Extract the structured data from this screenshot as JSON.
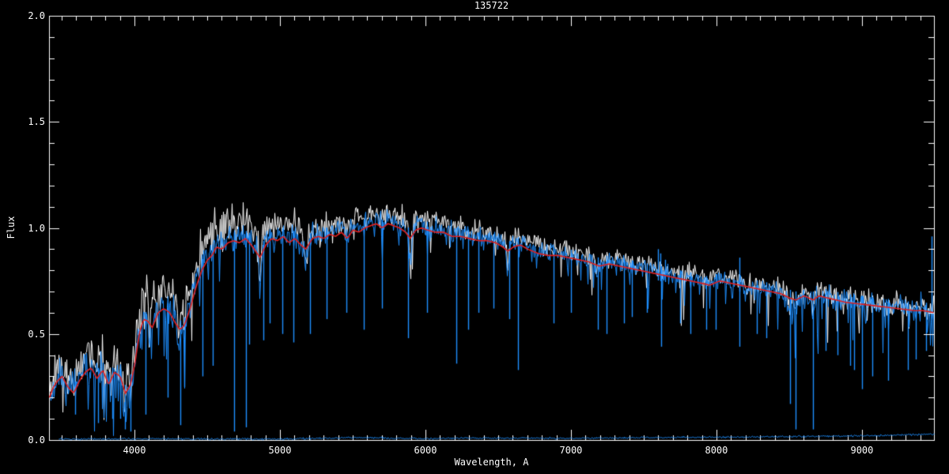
{
  "title": "135722",
  "axes": {
    "xlabel": "Wavelength, A",
    "ylabel": "Flux",
    "x_tick_labels": [
      "4000",
      "5000",
      "6000",
      "7000",
      "8000",
      "9000"
    ],
    "y_tick_labels": [
      "0.0",
      "0.5",
      "1.0",
      "1.5",
      "2.0"
    ]
  },
  "colors": {
    "background": "#000000",
    "axis": "#ffffff",
    "observed": "#ffffff",
    "comparison": "#1e8fff",
    "model": "#e02020"
  },
  "chart_data": {
    "type": "line",
    "title": "135722",
    "xlabel": "Wavelength, A",
    "ylabel": "Flux",
    "xlim": [
      3413,
      9495
    ],
    "ylim": [
      0.0,
      2.0
    ],
    "x_major_ticks": [
      4000,
      5000,
      6000,
      7000,
      8000,
      9000
    ],
    "x_minor_step": 100,
    "y_major_ticks": [
      0.0,
      0.5,
      1.0,
      1.5,
      2.0
    ],
    "y_minor_step": 0.1,
    "grid": false,
    "legend": "none",
    "series": [
      {
        "name": "observed spectrum",
        "color": "#ffffff",
        "style": "noisy-line",
        "offset_points": [
          [
            3413,
            0.05
          ],
          [
            3700,
            0.06
          ],
          [
            4000,
            0.08
          ],
          [
            4300,
            0.11
          ],
          [
            4600,
            0.11
          ],
          [
            4800,
            0.07
          ],
          [
            5100,
            0.06
          ],
          [
            5500,
            0.05
          ],
          [
            6000,
            0.05
          ],
          [
            6500,
            0.04
          ],
          [
            7000,
            0.04
          ],
          [
            7500,
            0.03
          ],
          [
            8000,
            0.03
          ],
          [
            8600,
            0.02
          ],
          [
            9495,
            0.02
          ]
        ],
        "noise_amp_points": [
          [
            3413,
            0.09
          ],
          [
            3700,
            0.09
          ],
          [
            4000,
            0.1
          ],
          [
            4300,
            0.1
          ],
          [
            4700,
            0.09
          ],
          [
            5000,
            0.07
          ],
          [
            5500,
            0.06
          ],
          [
            6000,
            0.055
          ],
          [
            6500,
            0.05
          ],
          [
            7000,
            0.045
          ],
          [
            7500,
            0.05
          ],
          [
            8000,
            0.045
          ],
          [
            8600,
            0.05
          ],
          [
            9000,
            0.055
          ],
          [
            9495,
            0.065
          ]
        ]
      },
      {
        "name": "comparison spectrum",
        "color": "#1e8fff",
        "style": "noisy-line",
        "offset_points": [
          [
            3413,
            0.01
          ],
          [
            4300,
            0.02
          ],
          [
            5000,
            0.02
          ],
          [
            6000,
            0.02
          ],
          [
            7000,
            0.015
          ],
          [
            8000,
            0.01
          ],
          [
            9495,
            0.01
          ]
        ],
        "noise_amp_points": [
          [
            3413,
            0.07
          ],
          [
            4000,
            0.08
          ],
          [
            4300,
            0.08
          ],
          [
            4700,
            0.07
          ],
          [
            5000,
            0.055
          ],
          [
            5500,
            0.05
          ],
          [
            6000,
            0.045
          ],
          [
            6500,
            0.04
          ],
          [
            7000,
            0.04
          ],
          [
            7500,
            0.045
          ],
          [
            8000,
            0.04
          ],
          [
            8600,
            0.045
          ],
          [
            9000,
            0.05
          ],
          [
            9495,
            0.06
          ]
        ]
      },
      {
        "name": "model fit",
        "color": "#e02020",
        "style": "smooth-line",
        "points": [
          [
            3413,
            0.2
          ],
          [
            3440,
            0.25
          ],
          [
            3470,
            0.28
          ],
          [
            3500,
            0.3
          ],
          [
            3540,
            0.25
          ],
          [
            3580,
            0.22
          ],
          [
            3620,
            0.28
          ],
          [
            3660,
            0.32
          ],
          [
            3700,
            0.34
          ],
          [
            3740,
            0.29
          ],
          [
            3780,
            0.33
          ],
          [
            3820,
            0.26
          ],
          [
            3860,
            0.32
          ],
          [
            3900,
            0.3
          ],
          [
            3935,
            0.22
          ],
          [
            3970,
            0.26
          ],
          [
            4000,
            0.36
          ],
          [
            4030,
            0.5
          ],
          [
            4060,
            0.57
          ],
          [
            4090,
            0.56
          ],
          [
            4120,
            0.53
          ],
          [
            4160,
            0.6
          ],
          [
            4200,
            0.62
          ],
          [
            4240,
            0.6
          ],
          [
            4280,
            0.55
          ],
          [
            4310,
            0.52
          ],
          [
            4340,
            0.54
          ],
          [
            4380,
            0.62
          ],
          [
            4420,
            0.72
          ],
          [
            4460,
            0.8
          ],
          [
            4500,
            0.85
          ],
          [
            4530,
            0.87
          ],
          [
            4560,
            0.91
          ],
          [
            4600,
            0.9
          ],
          [
            4640,
            0.93
          ],
          [
            4680,
            0.94
          ],
          [
            4720,
            0.93
          ],
          [
            4760,
            0.95
          ],
          [
            4800,
            0.92
          ],
          [
            4861,
            0.86
          ],
          [
            4900,
            0.92
          ],
          [
            4940,
            0.95
          ],
          [
            4980,
            0.94
          ],
          [
            5020,
            0.96
          ],
          [
            5060,
            0.93
          ],
          [
            5100,
            0.95
          ],
          [
            5140,
            0.92
          ],
          [
            5175,
            0.9
          ],
          [
            5220,
            0.95
          ],
          [
            5260,
            0.96
          ],
          [
            5300,
            0.95
          ],
          [
            5340,
            0.97
          ],
          [
            5380,
            0.96
          ],
          [
            5420,
            0.98
          ],
          [
            5460,
            0.95
          ],
          [
            5500,
            0.99
          ],
          [
            5540,
            0.98
          ],
          [
            5580,
            1.0
          ],
          [
            5620,
            1.01
          ],
          [
            5660,
            1.02
          ],
          [
            5700,
            1.0
          ],
          [
            5740,
            1.02
          ],
          [
            5780,
            1.01
          ],
          [
            5820,
            1.0
          ],
          [
            5860,
            0.98
          ],
          [
            5893,
            0.95
          ],
          [
            5930,
            0.99
          ],
          [
            5970,
            1.0
          ],
          [
            6010,
            0.99
          ],
          [
            6060,
            0.98
          ],
          [
            6120,
            0.98
          ],
          [
            6180,
            0.96
          ],
          [
            6240,
            0.96
          ],
          [
            6300,
            0.95
          ],
          [
            6360,
            0.94
          ],
          [
            6420,
            0.94
          ],
          [
            6480,
            0.93
          ],
          [
            6530,
            0.91
          ],
          [
            6563,
            0.89
          ],
          [
            6600,
            0.91
          ],
          [
            6650,
            0.92
          ],
          [
            6700,
            0.9
          ],
          [
            6770,
            0.88
          ],
          [
            6840,
            0.87
          ],
          [
            6910,
            0.87
          ],
          [
            6980,
            0.86
          ],
          [
            7050,
            0.85
          ],
          [
            7120,
            0.84
          ],
          [
            7190,
            0.82
          ],
          [
            7260,
            0.83
          ],
          [
            7330,
            0.82
          ],
          [
            7400,
            0.81
          ],
          [
            7470,
            0.8
          ],
          [
            7540,
            0.79
          ],
          [
            7610,
            0.78
          ],
          [
            7680,
            0.77
          ],
          [
            7750,
            0.76
          ],
          [
            7820,
            0.75
          ],
          [
            7890,
            0.74
          ],
          [
            7950,
            0.73
          ],
          [
            8020,
            0.75
          ],
          [
            8090,
            0.74
          ],
          [
            8160,
            0.73
          ],
          [
            8230,
            0.72
          ],
          [
            8300,
            0.71
          ],
          [
            8370,
            0.7
          ],
          [
            8440,
            0.69
          ],
          [
            8498,
            0.67
          ],
          [
            8542,
            0.66
          ],
          [
            8600,
            0.68
          ],
          [
            8662,
            0.66
          ],
          [
            8700,
            0.68
          ],
          [
            8760,
            0.67
          ],
          [
            8820,
            0.66
          ],
          [
            8880,
            0.65
          ],
          [
            8940,
            0.645
          ],
          [
            9000,
            0.64
          ],
          [
            9060,
            0.635
          ],
          [
            9120,
            0.63
          ],
          [
            9180,
            0.625
          ],
          [
            9240,
            0.62
          ],
          [
            9300,
            0.615
          ],
          [
            9360,
            0.61
          ],
          [
            9420,
            0.61
          ],
          [
            9495,
            0.6
          ]
        ]
      },
      {
        "name": "error spectrum",
        "color": "#1e8fff",
        "style": "flat-line",
        "points": [
          [
            3450,
            0.005
          ],
          [
            5000,
            0.005
          ],
          [
            5577,
            0.012
          ],
          [
            6000,
            0.006
          ],
          [
            6300,
            0.01
          ],
          [
            7000,
            0.008
          ],
          [
            7600,
            0.012
          ],
          [
            8300,
            0.015
          ],
          [
            9000,
            0.02
          ],
          [
            9495,
            0.028
          ]
        ]
      }
    ],
    "absorption_lines": [
      [
        3797,
        0.15,
        6
      ],
      [
        3835,
        0.18,
        6
      ],
      [
        3889,
        0.18,
        6
      ],
      [
        3933,
        0.3,
        8
      ],
      [
        3968,
        0.25,
        8
      ],
      [
        4101,
        0.18,
        7
      ],
      [
        4305,
        0.18,
        8
      ],
      [
        4340,
        0.15,
        7
      ],
      [
        4861,
        0.18,
        7
      ],
      [
        5175,
        0.1,
        10
      ],
      [
        5893,
        0.12,
        8
      ],
      [
        6563,
        0.12,
        7
      ],
      [
        7180,
        0.06,
        15
      ],
      [
        8205,
        0.06,
        15
      ],
      [
        8498,
        0.1,
        8
      ],
      [
        8542,
        0.14,
        8
      ],
      [
        8662,
        0.12,
        8
      ]
    ],
    "down_spikes": [
      [
        3590,
        0.12
      ],
      [
        3750,
        0.08
      ],
      [
        3848,
        0.1
      ],
      [
        3902,
        0.1
      ],
      [
        3935,
        0.05
      ],
      [
        3973,
        0.04
      ],
      [
        4078,
        0.12
      ],
      [
        4230,
        0.2
      ],
      [
        4315,
        0.07
      ],
      [
        4340,
        0.25
      ],
      [
        4470,
        0.3
      ],
      [
        4540,
        0.35
      ],
      [
        4685,
        0.04
      ],
      [
        4766,
        0.06
      ],
      [
        4790,
        0.45
      ],
      [
        4886,
        0.47
      ],
      [
        4930,
        0.55
      ],
      [
        5015,
        0.5
      ],
      [
        5092,
        0.46
      ],
      [
        5207,
        0.5
      ],
      [
        5320,
        0.57
      ],
      [
        5457,
        0.6
      ],
      [
        5577,
        0.52
      ],
      [
        5700,
        0.62
      ],
      [
        5880,
        0.48
      ],
      [
        6010,
        0.6
      ],
      [
        6212,
        0.36
      ],
      [
        6293,
        0.52
      ],
      [
        6365,
        0.6
      ],
      [
        6470,
        0.62
      ],
      [
        6576,
        0.57
      ],
      [
        6636,
        0.33
      ],
      [
        6880,
        0.55
      ],
      [
        7000,
        0.6
      ],
      [
        7186,
        0.52
      ],
      [
        7246,
        0.5
      ],
      [
        7364,
        0.55
      ],
      [
        7419,
        0.58
      ],
      [
        7520,
        0.6
      ],
      [
        7620,
        0.44
      ],
      [
        7750,
        0.55
      ],
      [
        7820,
        0.5
      ],
      [
        7930,
        0.52
      ],
      [
        7995,
        0.52
      ],
      [
        8158,
        0.44
      ],
      [
        8280,
        0.5
      ],
      [
        8345,
        0.48
      ],
      [
        8506,
        0.17
      ],
      [
        8544,
        0.05
      ],
      [
        8663,
        0.05
      ],
      [
        8750,
        0.42
      ],
      [
        8832,
        0.4
      ],
      [
        8920,
        0.35
      ],
      [
        8946,
        0.33
      ],
      [
        9000,
        0.24
      ],
      [
        9071,
        0.3
      ],
      [
        9180,
        0.28
      ],
      [
        9315,
        0.33
      ],
      [
        9370,
        0.38
      ],
      [
        9440,
        0.42
      ]
    ],
    "up_spikes": [
      [
        7596,
        0.9
      ],
      [
        7615,
        0.88
      ],
      [
        7645,
        0.85
      ],
      [
        8158,
        0.86
      ],
      [
        9480,
        0.96
      ]
    ]
  }
}
